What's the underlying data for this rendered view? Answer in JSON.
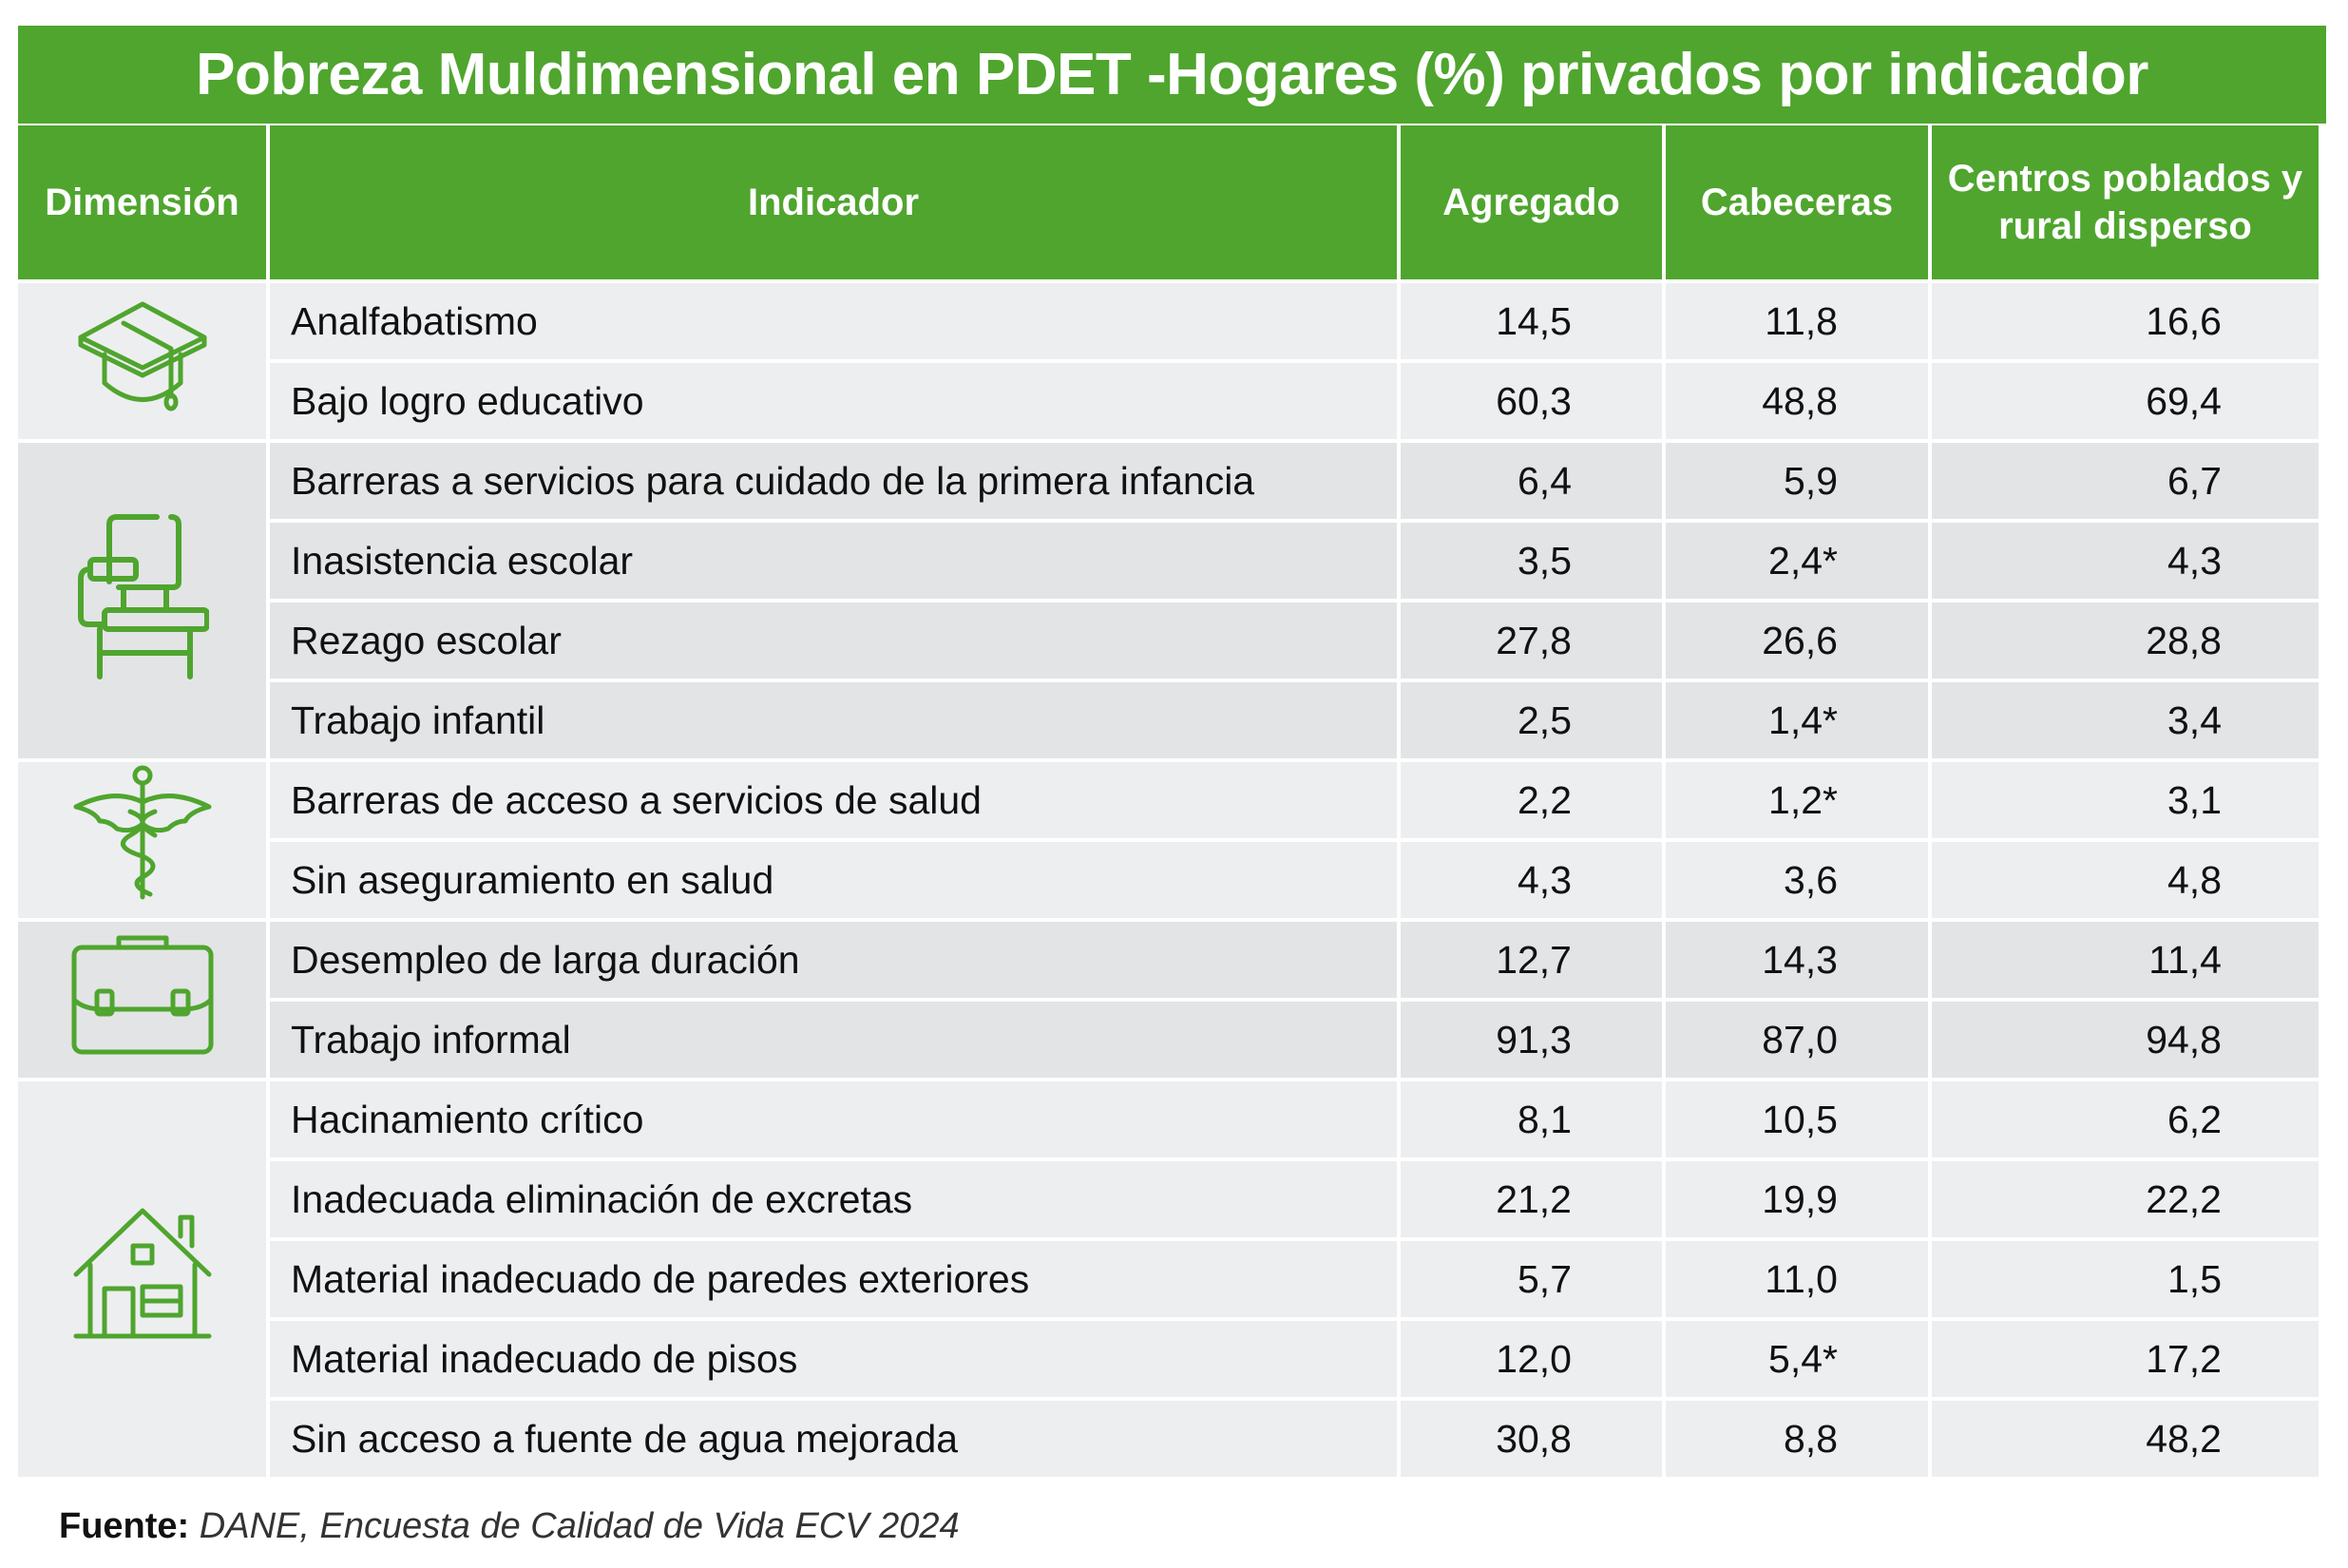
{
  "title": "Pobreza Muldimensional en PDET -Hogares  (%) privados por indicador",
  "headers": {
    "dimension": "Dimensión",
    "indicator": "Indicador",
    "aggregate": "Agregado",
    "cabeceras": "Cabeceras",
    "rural": "Centros poblados y rural disperso"
  },
  "colors": {
    "accent": "#4fa52e",
    "row_light": "#edeef0",
    "row_dark": "#e3e4e6"
  },
  "groups": [
    {
      "icon": "graduation-cap-icon",
      "rows": [
        {
          "indicator": "Analfabatismo",
          "aggregate": "14,5",
          "cabeceras": "11,8",
          "rural": "16,6"
        },
        {
          "indicator": "Bajo logro educativo",
          "aggregate": "60,3",
          "cabeceras": "48,8",
          "rural": "69,4"
        }
      ]
    },
    {
      "icon": "school-desk-icon",
      "rows": [
        {
          "indicator": "Barreras a servicios para cuidado de la primera infancia",
          "aggregate": "6,4",
          "cabeceras": "5,9",
          "rural": "6,7"
        },
        {
          "indicator": "Inasistencia escolar",
          "aggregate": "3,5",
          "cabeceras": "2,4*",
          "rural": "4,3"
        },
        {
          "indicator": "Rezago escolar",
          "aggregate": "27,8",
          "cabeceras": "26,6",
          "rural": "28,8"
        },
        {
          "indicator": "Trabajo infantil",
          "aggregate": "2,5",
          "cabeceras": "1,4*",
          "rural": "3,4"
        }
      ]
    },
    {
      "icon": "caduceus-icon",
      "rows": [
        {
          "indicator": "Barreras de acceso a servicios de salud",
          "aggregate": "2,2",
          "cabeceras": "1,2*",
          "rural": "3,1"
        },
        {
          "indicator": "Sin aseguramiento en salud",
          "aggregate": "4,3",
          "cabeceras": "3,6",
          "rural": "4,8"
        }
      ]
    },
    {
      "icon": "briefcase-icon",
      "rows": [
        {
          "indicator": "Desempleo de larga duración",
          "aggregate": "12,7",
          "cabeceras": "14,3",
          "rural": "11,4"
        },
        {
          "indicator": "Trabajo informal",
          "aggregate": "91,3",
          "cabeceras": "87,0",
          "rural": "94,8"
        }
      ]
    },
    {
      "icon": "house-icon",
      "rows": [
        {
          "indicator": "Hacinamiento crítico",
          "aggregate": "8,1",
          "cabeceras": "10,5",
          "rural": "6,2"
        },
        {
          "indicator": "Inadecuada eliminación de excretas",
          "aggregate": "21,2",
          "cabeceras": "19,9",
          "rural": "22,2"
        },
        {
          "indicator": "Material inadecuado de paredes exteriores",
          "aggregate": "5,7",
          "cabeceras": "11,0",
          "rural": "1,5"
        },
        {
          "indicator": "Material inadecuado de pisos",
          "aggregate": "12,0",
          "cabeceras": "5,4*",
          "rural": "17,2"
        },
        {
          "indicator": "Sin acceso a fuente de agua mejorada",
          "aggregate": "30,8",
          "cabeceras": "8,8",
          "rural": "48,2"
        }
      ]
    }
  ],
  "footer": {
    "label": "Fuente:",
    "text": "DANE, Encuesta de Calidad de Vida ECV 2024"
  }
}
